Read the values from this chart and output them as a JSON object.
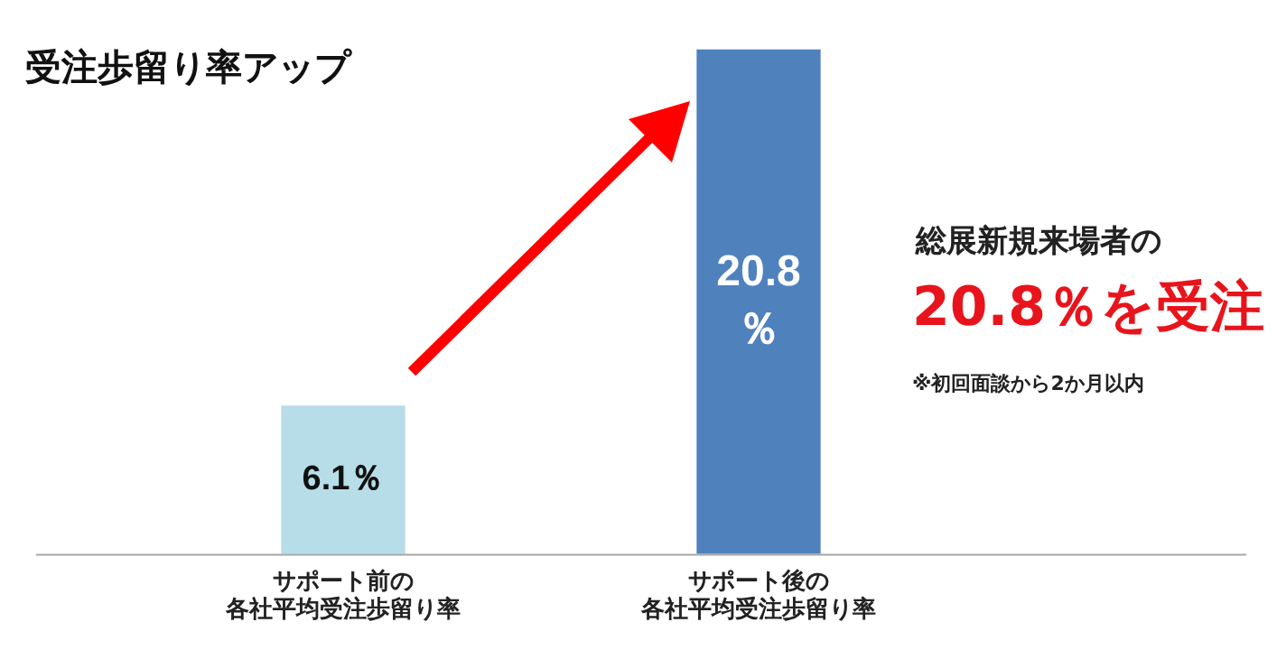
{
  "chart_data": {
    "type": "bar",
    "title": "受注歩留り率アップ",
    "categories": [
      "サポート前の各社平均受注歩留り率",
      "サポート後の各社平均受注歩留り率"
    ],
    "values": [
      6.1,
      20.8
    ],
    "colors": [
      "#b7dde8",
      "#4f81bd"
    ],
    "value_labels": [
      "6.1％",
      "20.8％"
    ],
    "ylim": [
      0,
      21
    ],
    "annotations": [
      "総展新規来場者の",
      "20.8％を受注",
      "※初回面談から2か月以内"
    ]
  }
}
